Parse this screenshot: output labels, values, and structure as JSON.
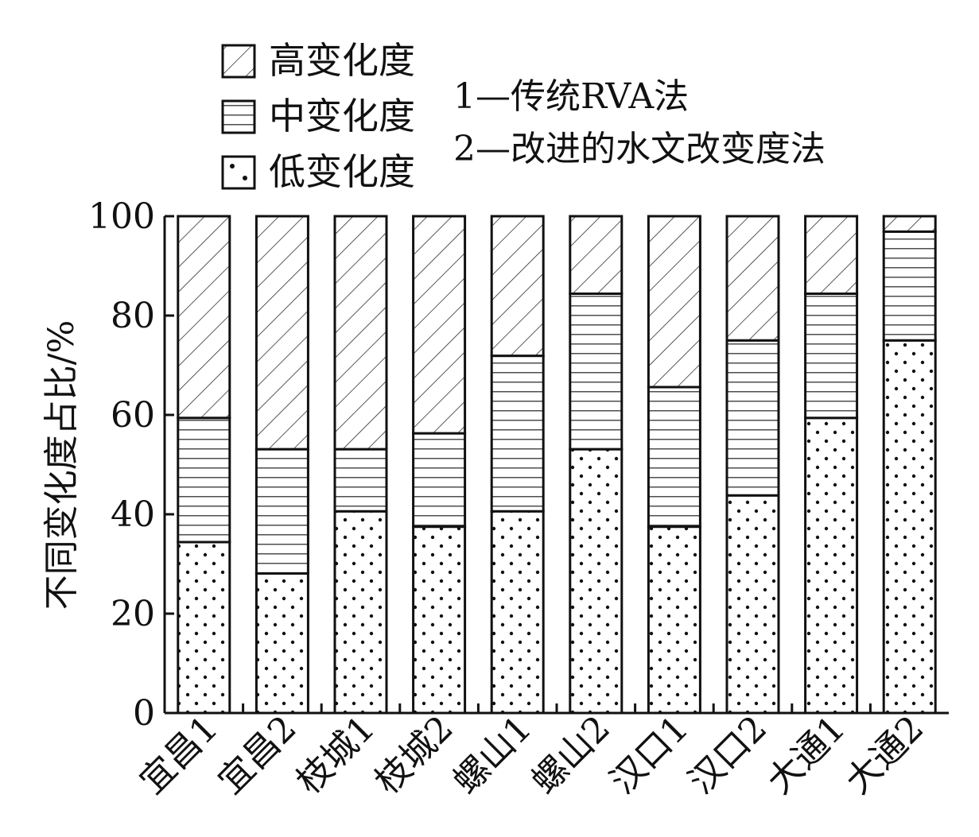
{
  "chart_data": {
    "type": "bar",
    "stacked": true,
    "categories": [
      "宜昌1",
      "宜昌2",
      "枝城1",
      "枝城2",
      "螺山1",
      "螺山2",
      "汉口1",
      "汉口2",
      "大通1",
      "大通2"
    ],
    "series": [
      {
        "name": "低变化度",
        "pattern": "dots",
        "values": [
          34.4,
          28.1,
          40.6,
          37.5,
          40.6,
          53.1,
          37.5,
          43.8,
          59.4,
          75.0
        ]
      },
      {
        "name": "中变化度",
        "pattern": "horizontal-lines",
        "values": [
          25.0,
          25.0,
          12.5,
          18.8,
          31.3,
          31.3,
          28.1,
          31.2,
          25.0,
          21.9
        ]
      },
      {
        "name": "高变化度",
        "pattern": "diagonal-hatch",
        "values": [
          40.6,
          46.9,
          46.9,
          43.7,
          28.1,
          15.6,
          34.4,
          25.0,
          15.6,
          3.1
        ]
      }
    ],
    "ylabel": "不同变化度占比/%",
    "xlabel": "",
    "ylim": [
      0,
      100
    ],
    "yticks": [
      0,
      20,
      40,
      60,
      80,
      100
    ],
    "grid": false,
    "legend_position": "top-left",
    "notes": [
      "1—传统RVA法",
      "2—改进的水文改变度法"
    ]
  }
}
